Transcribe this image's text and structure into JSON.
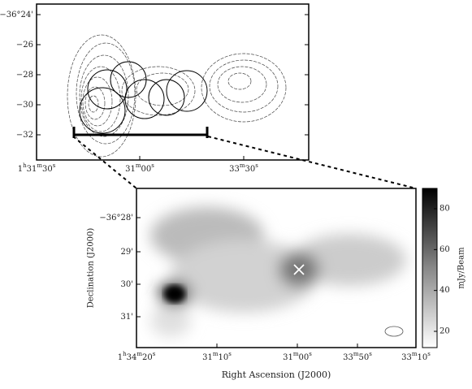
{
  "top_panel": {
    "yticks": [
      "−36°24'",
      "−26",
      "−28",
      "−30",
      "−32"
    ],
    "xticks": [
      "1h31m30s",
      "31m00s",
      "33m30s"
    ]
  },
  "bottom_panel": {
    "ylabel": "Declination (J2000)",
    "xlabel": "Right Ascension (J2000)",
    "yticks": [
      "−36°28'",
      "29'",
      "30'",
      "31'"
    ],
    "xticks": [
      "1h34m20s",
      "31m10s",
      "31m00s",
      "33m50s",
      "33m10s"
    ]
  },
  "colorbar": {
    "label": "mJy/Beam",
    "ticks": [
      80,
      60,
      40,
      20
    ]
  }
}
